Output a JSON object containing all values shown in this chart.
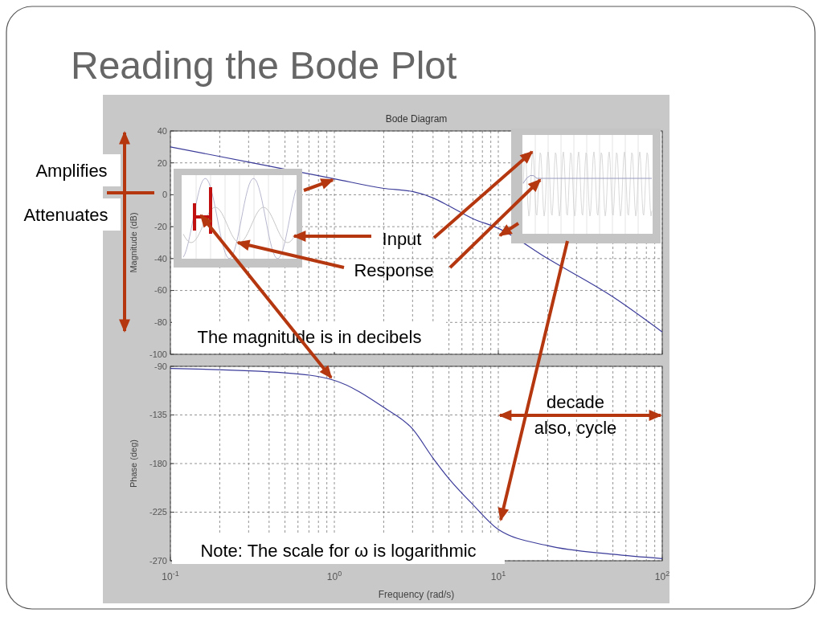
{
  "chart_data": [
    {
      "type": "line",
      "title": "Reading the Bode Plot",
      "subtitle": "Bode Diagram",
      "ylabel": "Magnitude (dB)",
      "xlim": [
        0.1,
        100
      ],
      "ylim": [
        -100,
        40
      ],
      "log": "x",
      "grid": true,
      "tick_labels": "y",
      "xticks": [
        0.1,
        1,
        10,
        100
      ],
      "yticks": [
        -100,
        -80,
        -60,
        -40,
        -20,
        0,
        20,
        40
      ],
      "annotations": [
        "Amplifies",
        "Attenuates",
        "Input",
        "Response",
        "The magnitude is in decibels"
      ],
      "series": [
        {
          "color": "#3b3b9a",
          "x": [
            0.1,
            0.2,
            0.5,
            1,
            2,
            3,
            4,
            5,
            7,
            10,
            20,
            50,
            100
          ],
          "values": [
            30,
            24,
            16,
            10,
            4,
            2,
            -2,
            -7,
            -15,
            -21,
            -40,
            -64,
            -86
          ]
        }
      ]
    },
    {
      "type": "line",
      "xlabel": "Frequency  (rad/s)",
      "ylabel": "Phase (deg)",
      "xlim": [
        0.1,
        100
      ],
      "ylim": [
        -270,
        -90
      ],
      "log": "x",
      "grid": true,
      "xticks": [
        {
          "value": 0.1,
          "label": "10$^{-1}$"
        },
        {
          "value": 1,
          "label": "10$^{0}$"
        },
        {
          "value": 10,
          "label": "10$^{1}$"
        },
        {
          "value": 100,
          "label": "10$^{2}$"
        }
      ],
      "yticks": [
        -270,
        -225,
        -180,
        -135,
        -90
      ],
      "annotations": [
        "decade",
        "also, cycle",
        "Note: The scale for ω is logarithmic"
      ],
      "series": [
        {
          "color": "#3b3b9a",
          "x": [
            0.1,
            0.5,
            1,
            2,
            3,
            4,
            5,
            7,
            10,
            20,
            50,
            100
          ],
          "values": [
            -92,
            -96,
            -103,
            -128,
            -148,
            -175,
            -194,
            -218,
            -241,
            -256,
            -264,
            -268
          ]
        }
      ]
    }
  ]
}
